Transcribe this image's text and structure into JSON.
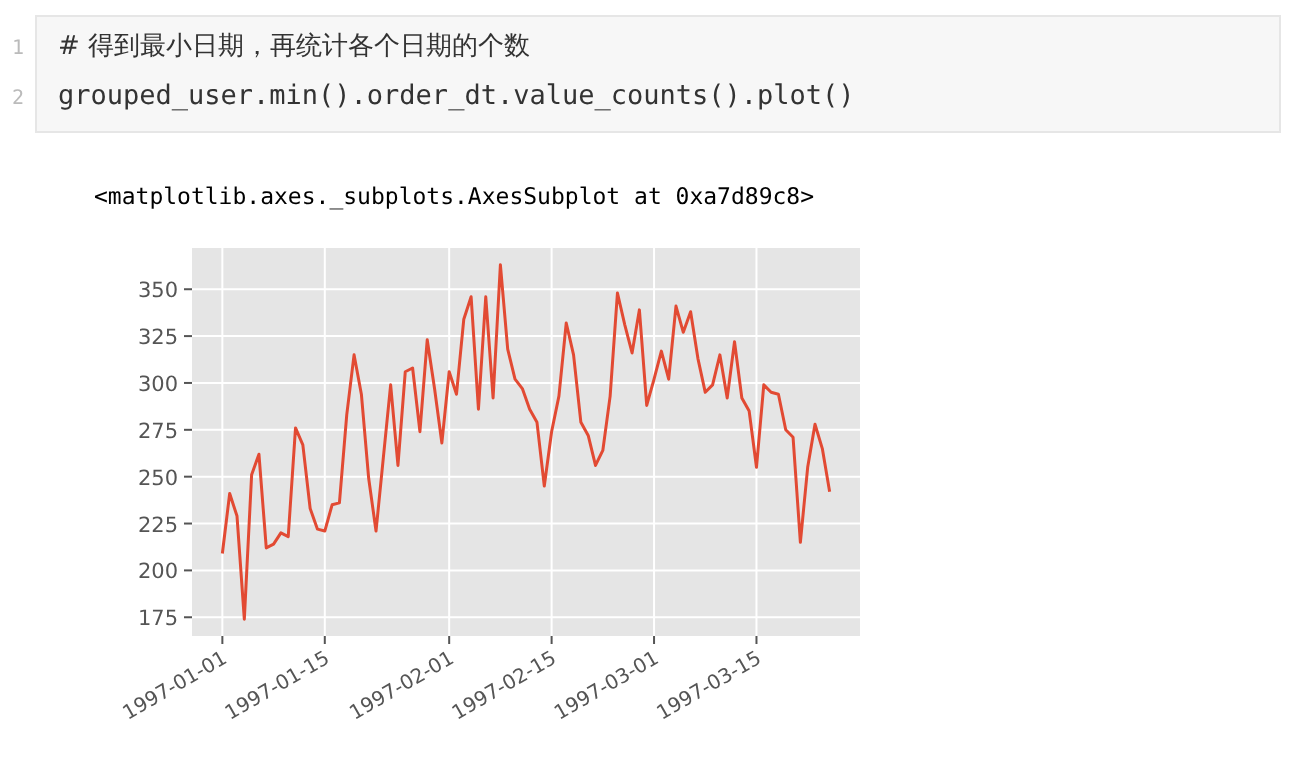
{
  "chart_data": {
    "type": "line",
    "annotations": [
      "1",
      "2",
      "# 得到最小日期，再统计各个日期的个数",
      "grouped_user.min().order_dt.value_counts().plot()",
      "<matplotlib.axes._subplots.AxesSubplot at 0xa7d89c8>"
    ],
    "x": [
      "1997-01-01",
      "1997-01-02",
      "1997-01-03",
      "1997-01-04",
      "1997-01-05",
      "1997-01-06",
      "1997-01-07",
      "1997-01-08",
      "1997-01-09",
      "1997-01-10",
      "1997-01-11",
      "1997-01-12",
      "1997-01-13",
      "1997-01-14",
      "1997-01-15",
      "1997-01-16",
      "1997-01-17",
      "1997-01-18",
      "1997-01-19",
      "1997-01-20",
      "1997-01-21",
      "1997-01-22",
      "1997-01-23",
      "1997-01-24",
      "1997-01-25",
      "1997-01-26",
      "1997-01-27",
      "1997-01-28",
      "1997-01-29",
      "1997-01-30",
      "1997-01-31",
      "1997-02-01",
      "1997-02-02",
      "1997-02-03",
      "1997-02-04",
      "1997-02-05",
      "1997-02-06",
      "1997-02-07",
      "1997-02-08",
      "1997-02-09",
      "1997-02-10",
      "1997-02-11",
      "1997-02-12",
      "1997-02-13",
      "1997-02-14",
      "1997-02-15",
      "1997-02-16",
      "1997-02-17",
      "1997-02-18",
      "1997-02-19",
      "1997-02-20",
      "1997-02-21",
      "1997-02-22",
      "1997-02-23",
      "1997-02-24",
      "1997-02-25",
      "1997-02-26",
      "1997-02-27",
      "1997-02-28",
      "1997-03-01",
      "1997-03-02",
      "1997-03-03",
      "1997-03-04",
      "1997-03-05",
      "1997-03-06",
      "1997-03-07",
      "1997-03-08",
      "1997-03-09",
      "1997-03-10",
      "1997-03-11",
      "1997-03-12",
      "1997-03-13",
      "1997-03-14",
      "1997-03-15",
      "1997-03-16",
      "1997-03-17",
      "1997-03-18",
      "1997-03-19",
      "1997-03-20",
      "1997-03-21",
      "1997-03-22",
      "1997-03-23",
      "1997-03-24",
      "1997-03-25"
    ],
    "series": [
      {
        "color": "#e24a33",
        "values": [
          209,
          241,
          229,
          174,
          251,
          262,
          212,
          214,
          220,
          218,
          276,
          267,
          233,
          222,
          221,
          235,
          236,
          283,
          315,
          294,
          249,
          221,
          260,
          299,
          256,
          306,
          308,
          274,
          323,
          297,
          268,
          306,
          294,
          334,
          346,
          286,
          346,
          292,
          363,
          318,
          302,
          297,
          286,
          279,
          245,
          274,
          293,
          332,
          315,
          279,
          272,
          256,
          264,
          293,
          348,
          331,
          316,
          339,
          288,
          302,
          317,
          302,
          341,
          327,
          338,
          313,
          295,
          299,
          315,
          292,
          322,
          292,
          285,
          255,
          299,
          295,
          294,
          275,
          271,
          215,
          255,
          278,
          265,
          242
        ]
      }
    ],
    "xlim": [
      "1996-12-27T20:24",
      "1997-03-29T03:36"
    ],
    "xticks": [
      "1997-01-01",
      "1997-01-15",
      "1997-02-01",
      "1997-02-15",
      "1997-03-01",
      "1997-03-15"
    ],
    "ylim": [
      165,
      372
    ],
    "yticks": [
      175,
      200,
      225,
      250,
      275,
      300,
      325,
      350
    ],
    "grid": true
  }
}
